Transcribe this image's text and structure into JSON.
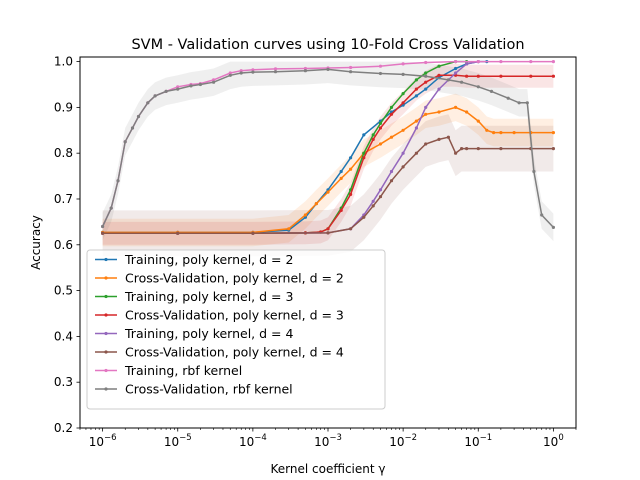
{
  "chart_data": {
    "type": "line",
    "title": "SVM - Validation curves using 10-Fold Cross Validation",
    "xlabel": "Kernel coefficient γ",
    "ylabel": "Accuracy",
    "xscale": "log",
    "xlim": [
      5e-07,
      2
    ],
    "ylim": [
      0.2,
      1.01
    ],
    "grid": false,
    "legend_position": "lower-left",
    "x_ticks": [
      {
        "value": 1e-06,
        "base": "10",
        "exp": "−6"
      },
      {
        "value": 1e-05,
        "base": "10",
        "exp": "−5"
      },
      {
        "value": 0.0001,
        "base": "10",
        "exp": "−4"
      },
      {
        "value": 0.001,
        "base": "10",
        "exp": "−3"
      },
      {
        "value": 0.01,
        "base": "10",
        "exp": "−2"
      },
      {
        "value": 0.1,
        "base": "10",
        "exp": "−1"
      },
      {
        "value": 1,
        "base": "10",
        "exp": "0"
      }
    ],
    "y_ticks": [
      0.2,
      0.3,
      0.4,
      0.5,
      0.6,
      0.7,
      0.8,
      0.9,
      1.0
    ],
    "y_tick_labels": [
      "0.2",
      "0.3",
      "0.4",
      "0.5",
      "0.6",
      "0.7",
      "0.8",
      "0.9",
      "1.0"
    ],
    "series": [
      {
        "name": "Training, poly kernel, d = 2",
        "color": "#1f77b4",
        "x": [
          1e-06,
          1e-05,
          0.0001,
          0.0003,
          0.0005,
          0.0007,
          0.001,
          0.0015,
          0.002,
          0.003,
          0.005,
          0.007,
          0.01,
          0.015,
          0.02,
          0.03,
          0.05,
          0.07,
          0.1,
          0.13
        ],
        "y": [
          0.627,
          0.627,
          0.627,
          0.632,
          0.66,
          0.69,
          0.72,
          0.76,
          0.79,
          0.84,
          0.87,
          0.89,
          0.905,
          0.925,
          0.94,
          0.965,
          0.985,
          0.995,
          1.0,
          1.0
        ],
        "band": null
      },
      {
        "name": "Cross-Validation, poly kernel, d = 2",
        "color": "#ff7f0e",
        "x": [
          1e-06,
          1e-05,
          0.0001,
          0.0003,
          0.0005,
          0.0007,
          0.001,
          0.0015,
          0.002,
          0.003,
          0.005,
          0.007,
          0.01,
          0.015,
          0.02,
          0.03,
          0.05,
          0.07,
          0.1,
          0.13,
          0.16,
          0.2,
          0.3,
          0.5,
          1.0
        ],
        "y": [
          0.627,
          0.627,
          0.627,
          0.635,
          0.665,
          0.69,
          0.715,
          0.745,
          0.765,
          0.8,
          0.82,
          0.835,
          0.85,
          0.87,
          0.885,
          0.89,
          0.9,
          0.89,
          0.87,
          0.85,
          0.845,
          0.845,
          0.845,
          0.845,
          0.845
        ],
        "band": 0.03
      },
      {
        "name": "Training, poly kernel, d = 3",
        "color": "#2ca02c",
        "x": [
          1e-06,
          1e-05,
          0.0001,
          0.0005,
          0.0008,
          0.001,
          0.0015,
          0.002,
          0.003,
          0.004,
          0.005,
          0.007,
          0.01,
          0.015,
          0.02,
          0.03,
          0.05,
          0.07
        ],
        "y": [
          0.625,
          0.625,
          0.625,
          0.626,
          0.628,
          0.635,
          0.68,
          0.72,
          0.8,
          0.84,
          0.865,
          0.9,
          0.93,
          0.96,
          0.975,
          0.99,
          1.0,
          1.0
        ],
        "band": null
      },
      {
        "name": "Cross-Validation, poly kernel, d = 3",
        "color": "#d62728",
        "x": [
          1e-06,
          1e-05,
          0.0001,
          0.0005,
          0.0008,
          0.001,
          0.0015,
          0.002,
          0.003,
          0.004,
          0.005,
          0.007,
          0.01,
          0.015,
          0.02,
          0.03,
          0.05,
          0.07,
          0.1,
          0.2,
          0.5,
          1.0
        ],
        "y": [
          0.625,
          0.625,
          0.625,
          0.626,
          0.628,
          0.635,
          0.675,
          0.71,
          0.79,
          0.83,
          0.855,
          0.885,
          0.91,
          0.94,
          0.955,
          0.97,
          0.97,
          0.968,
          0.968,
          0.968,
          0.968,
          0.968
        ],
        "band": 0.025
      },
      {
        "name": "Training, poly kernel, d = 4",
        "color": "#9467bd",
        "x": [
          1e-06,
          1e-05,
          0.0001,
          0.001,
          0.002,
          0.003,
          0.004,
          0.005,
          0.007,
          0.01,
          0.015,
          0.02,
          0.03,
          0.05,
          0.07,
          0.1
        ],
        "y": [
          0.625,
          0.625,
          0.625,
          0.626,
          0.635,
          0.665,
          0.695,
          0.72,
          0.76,
          0.8,
          0.855,
          0.9,
          0.94,
          0.975,
          0.995,
          1.0
        ],
        "band": null
      },
      {
        "name": "Cross-Validation, poly kernel, d = 4",
        "color": "#8c564b",
        "x": [
          1e-06,
          1e-05,
          0.0001,
          0.001,
          0.002,
          0.003,
          0.004,
          0.005,
          0.007,
          0.01,
          0.015,
          0.02,
          0.03,
          0.04,
          0.05,
          0.06,
          0.07,
          0.1,
          0.2,
          0.5,
          1.0
        ],
        "y": [
          0.625,
          0.625,
          0.625,
          0.626,
          0.635,
          0.66,
          0.685,
          0.705,
          0.74,
          0.77,
          0.8,
          0.82,
          0.83,
          0.835,
          0.8,
          0.81,
          0.81,
          0.81,
          0.81,
          0.81,
          0.81
        ],
        "band": 0.05
      },
      {
        "name": "Training, rbf kernel",
        "color": "#e377c2",
        "x": [
          1e-06,
          1.3e-06,
          1.6e-06,
          2e-06,
          2.5e-06,
          3e-06,
          4e-06,
          5e-06,
          7e-06,
          1e-05,
          1.5e-05,
          2e-05,
          3e-05,
          5e-05,
          7e-05,
          0.0001,
          0.0002,
          0.0005,
          0.001,
          0.002,
          0.005,
          0.01,
          0.02,
          0.05,
          0.1,
          0.2,
          0.5,
          1.0
        ],
        "y": [
          0.64,
          0.68,
          0.74,
          0.825,
          0.855,
          0.88,
          0.91,
          0.925,
          0.935,
          0.945,
          0.95,
          0.952,
          0.96,
          0.975,
          0.98,
          0.982,
          0.984,
          0.985,
          0.986,
          0.987,
          0.99,
          0.995,
          0.998,
          1.0,
          1.0,
          1.0,
          1.0,
          1.0
        ],
        "band": null
      },
      {
        "name": "Cross-Validation, rbf kernel",
        "color": "#7f7f7f",
        "x": [
          1e-06,
          1.3e-06,
          1.6e-06,
          2e-06,
          2.5e-06,
          3e-06,
          4e-06,
          5e-06,
          7e-06,
          1e-05,
          1.5e-05,
          2e-05,
          3e-05,
          5e-05,
          7e-05,
          0.0001,
          0.0002,
          0.0005,
          0.001,
          0.002,
          0.005,
          0.01,
          0.02,
          0.04,
          0.06,
          0.1,
          0.15,
          0.25,
          0.35,
          0.45,
          0.55,
          0.7,
          1.0
        ],
        "y": [
          0.64,
          0.68,
          0.74,
          0.825,
          0.855,
          0.88,
          0.91,
          0.925,
          0.935,
          0.94,
          0.947,
          0.95,
          0.955,
          0.97,
          0.975,
          0.977,
          0.978,
          0.98,
          0.983,
          0.978,
          0.974,
          0.972,
          0.968,
          0.96,
          0.955,
          0.945,
          0.935,
          0.92,
          0.91,
          0.91,
          0.76,
          0.665,
          0.638
        ],
        "band": 0.03
      }
    ]
  }
}
